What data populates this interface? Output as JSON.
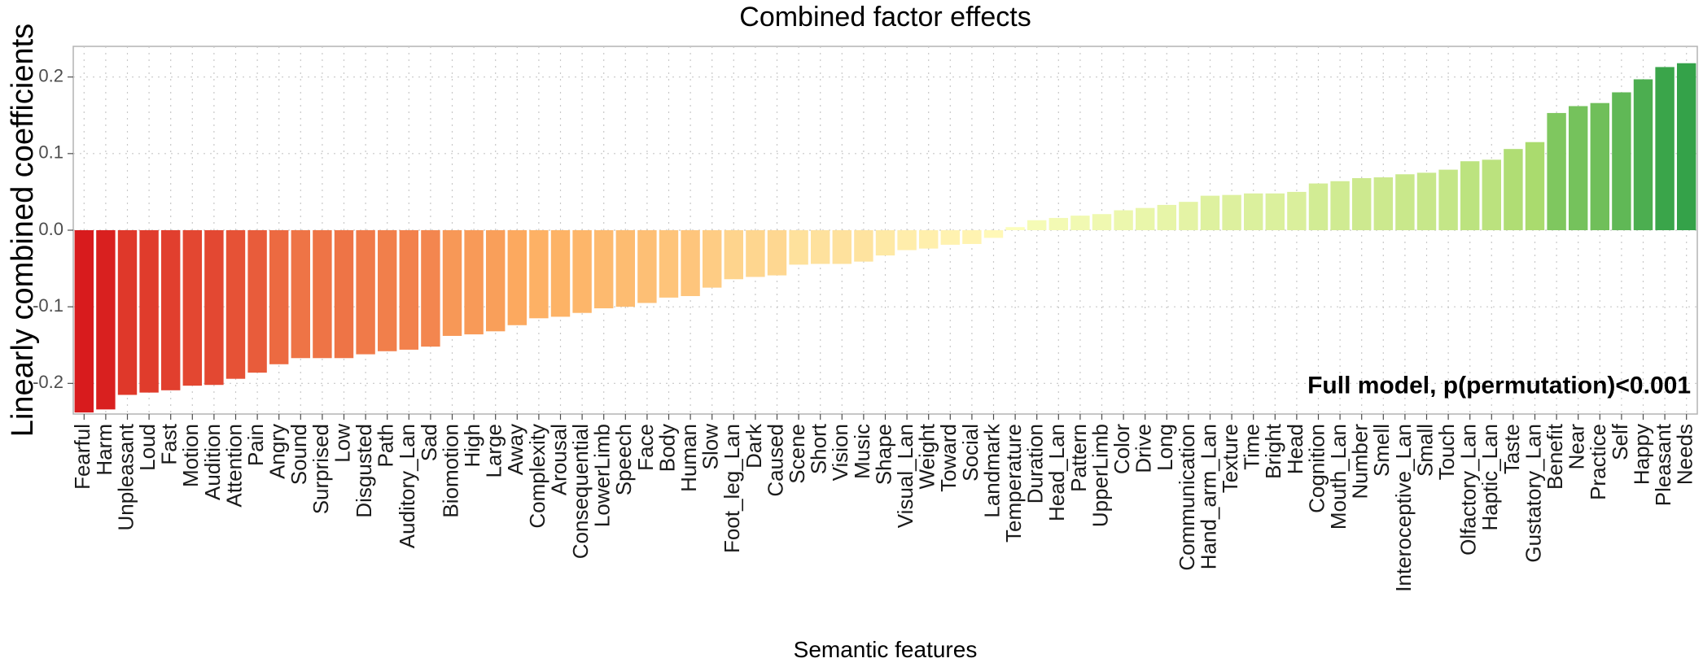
{
  "chart_data": {
    "type": "bar",
    "title": "Combined factor effects",
    "xlabel": "Semantic features",
    "ylabel": "Linearly combined coefficients",
    "annotation": "Full model, p(permutation)<0.001",
    "ylim": [
      -0.24,
      0.24
    ],
    "yticks": [
      -0.2,
      -0.1,
      0.0,
      0.1,
      0.2
    ],
    "ytick_labels": [
      "-0.2",
      "-0.1",
      "0.0",
      "0.1",
      "0.2"
    ],
    "grid": true,
    "color_scale": [
      "#d7191c",
      "#fdae61",
      "#ffffbf",
      "#a6d96a",
      "#1a9641"
    ],
    "categories": [
      "Fearful",
      "Harm",
      "Unpleasant",
      "Loud",
      "Fast",
      "Motion",
      "Audition",
      "Attention",
      "Pain",
      "Angry",
      "Sound",
      "Surprised",
      "Low",
      "Disgusted",
      "Path",
      "Auditory_Lan",
      "Sad",
      "Biomotion",
      "High",
      "Large",
      "Away",
      "Complexity",
      "Arousal",
      "Consequential",
      "LowerLimb",
      "Speech",
      "Face",
      "Body",
      "Human",
      "Slow",
      "Foot_leg_Lan",
      "Dark",
      "Caused",
      "Scene",
      "Short",
      "Vision",
      "Music",
      "Shape",
      "Visual_Lan",
      "Weight",
      "Toward",
      "Social",
      "Landmark",
      "Temperature",
      "Duration",
      "Head_Lan",
      "Pattern",
      "UpperLimb",
      "Color",
      "Drive",
      "Long",
      "Communication",
      "Hand_arm_Lan",
      "Texture",
      "Time",
      "Bright",
      "Head",
      "Cognition",
      "Mouth_Lan",
      "Number",
      "Smell",
      "Interoceptive_Lan",
      "Small",
      "Touch",
      "Olfactory_Lan",
      "Haptic_Lan",
      "Taste",
      "Gustatory_Lan",
      "Benefit",
      "Near",
      "Practice",
      "Self",
      "Happy",
      "Pleasant",
      "Needs"
    ],
    "values": [
      -0.238,
      -0.234,
      -0.215,
      -0.212,
      -0.209,
      -0.203,
      -0.202,
      -0.194,
      -0.186,
      -0.175,
      -0.167,
      -0.167,
      -0.167,
      -0.162,
      -0.158,
      -0.156,
      -0.152,
      -0.138,
      -0.136,
      -0.132,
      -0.124,
      -0.115,
      -0.113,
      -0.108,
      -0.102,
      -0.1,
      -0.095,
      -0.088,
      -0.086,
      -0.075,
      -0.064,
      -0.061,
      -0.059,
      -0.045,
      -0.044,
      -0.044,
      -0.041,
      -0.033,
      -0.026,
      -0.024,
      -0.019,
      -0.018,
      -0.01,
      0.004,
      0.013,
      0.016,
      0.019,
      0.021,
      0.026,
      0.029,
      0.033,
      0.037,
      0.045,
      0.046,
      0.048,
      0.048,
      0.05,
      0.061,
      0.064,
      0.068,
      0.069,
      0.073,
      0.075,
      0.079,
      0.09,
      0.092,
      0.106,
      0.115,
      0.153,
      0.162,
      0.166,
      0.18,
      0.197,
      0.213,
      0.218
    ]
  }
}
